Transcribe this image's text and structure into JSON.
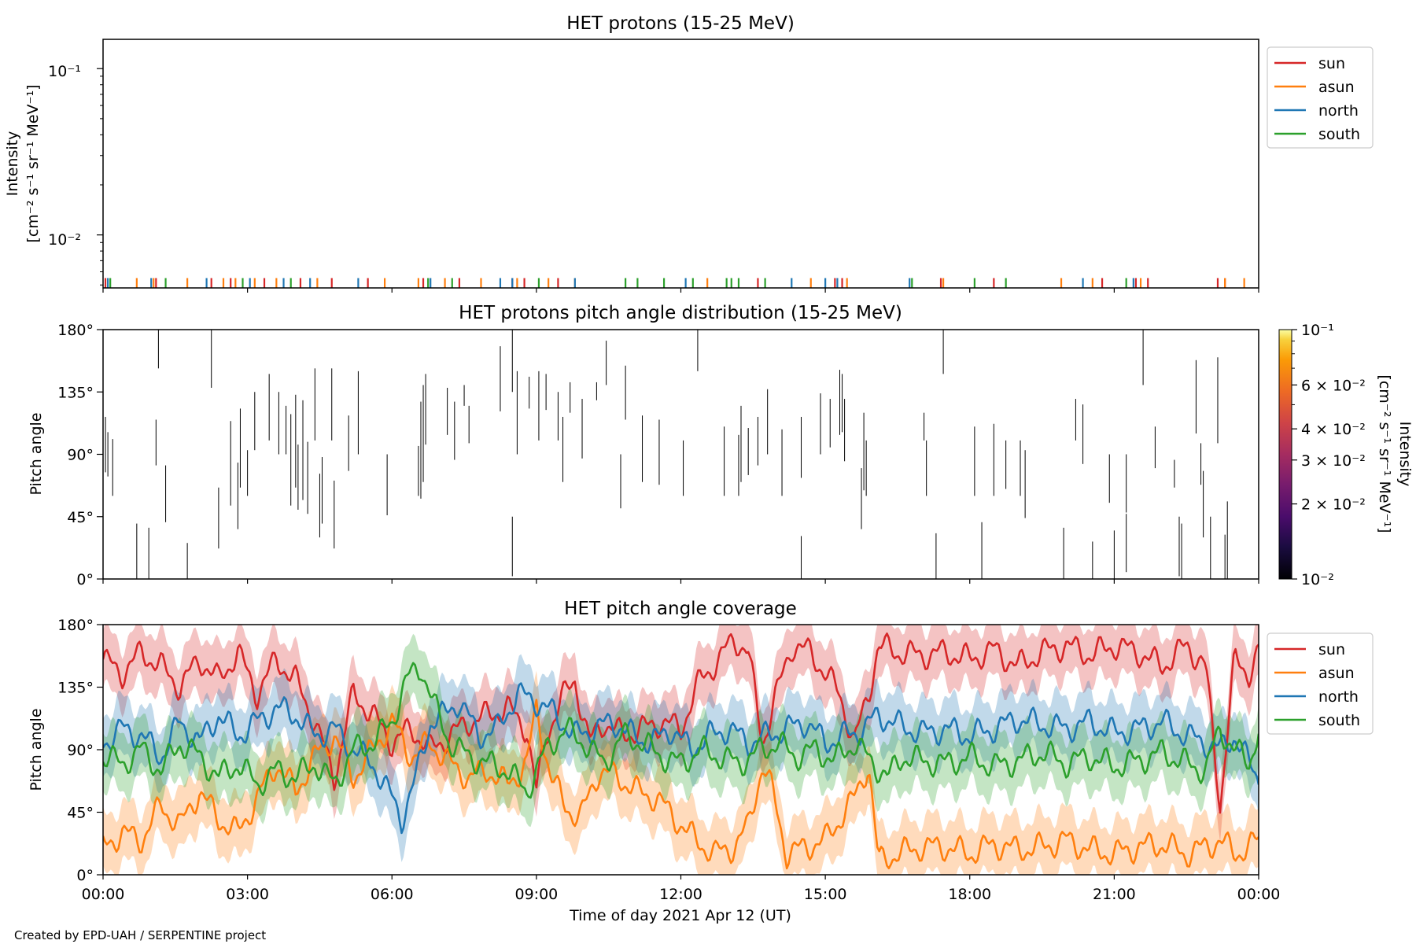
{
  "footer_text": "Created by EPD-UAH / SERPENTINE project",
  "xlabel": "Time of day 2021 Apr 12 (UT)",
  "x_ticks": [
    "00:00",
    "03:00",
    "06:00",
    "09:00",
    "12:00",
    "15:00",
    "18:00",
    "21:00",
    "00:00"
  ],
  "colors": {
    "sun": "#d62728",
    "asun": "#ff7f0e",
    "north": "#1f77b4",
    "south": "#2ca02c"
  },
  "legend": [
    "sun",
    "asun",
    "north",
    "south"
  ],
  "chart_data": [
    {
      "type": "line",
      "title": "HET protons (15-25 MeV)",
      "ylabel": [
        "Intensity",
        "[cm⁻² s⁻¹ sr⁻¹ MeV⁻¹]"
      ],
      "yscale": "log",
      "ylim": [
        0.0048,
        0.15
      ],
      "ytick_labels": [
        "10⁻¹",
        "10⁻²"
      ],
      "xlim_hours": [
        0,
        24
      ],
      "legend_placement": "upper right outside",
      "series": [
        {
          "name": "sun",
          "marks_value": 0.0055,
          "x_hours": [
            0.05,
            1.1,
            2.25,
            2.65,
            3.35,
            4.1,
            4.75,
            5.5,
            6.65,
            7.4,
            8.5,
            8.75,
            9.45,
            13.6,
            15.2,
            15.35,
            17.4,
            18.5,
            20.75,
            21.45,
            21.7,
            23.15,
            23.3
          ]
        },
        {
          "name": "asun",
          "marks_value": 0.0055,
          "x_hours": [
            0.7,
            1.05,
            1.75,
            2.5,
            2.75,
            3.15,
            3.6,
            4.45,
            5.85,
            6.55,
            7.1,
            7.85,
            8.6,
            9.25,
            9.8,
            12.55,
            14.7,
            15.45,
            17.45,
            19.9,
            20.55,
            21.55,
            23.3,
            23.7
          ]
        },
        {
          "name": "north",
          "marks_value": 0.0055,
          "x_hours": [
            0.1,
            1.0,
            2.15,
            3.05,
            3.75,
            4.3,
            5.3,
            6.8,
            8.25,
            8.5,
            9.8,
            12.1,
            14.3,
            15.0,
            15.25,
            16.75,
            20.35,
            21.4
          ]
        },
        {
          "name": "south",
          "marks_value": 0.0055,
          "x_hours": [
            0.15,
            1.3,
            2.9,
            3.9,
            6.75,
            7.25,
            9.05,
            10.85,
            11.1,
            11.65,
            12.25,
            12.95,
            13.05,
            13.2,
            13.75,
            16.8,
            18.1,
            18.75,
            21.25
          ]
        }
      ]
    },
    {
      "type": "heatmap",
      "title": "HET protons pitch angle distribution (15-25 MeV)",
      "ylabel": "Pitch angle",
      "ylim": [
        0,
        180
      ],
      "yticks": [
        0,
        45,
        90,
        135,
        180
      ],
      "ytick_labels": [
        "0°",
        "45°",
        "90°",
        "135°",
        "180°"
      ],
      "colorbar": {
        "label": [
          "Intensity",
          "[cm⁻² s⁻¹ sr⁻¹ MeV⁻¹]"
        ],
        "scale": "log",
        "range": [
          0.01,
          0.1
        ],
        "tick_values": [
          0.1,
          0.06,
          0.04,
          0.03,
          0.02,
          0.01
        ],
        "tick_labels": [
          "10⁻¹",
          "6 × 10⁻²",
          "4 × 10⁻²",
          "3 × 10⁻²",
          "2 × 10⁻²",
          "10⁻²"
        ]
      },
      "segments": [
        [
          0.05,
          77,
          117
        ],
        [
          0.1,
          74,
          106
        ],
        [
          0.2,
          60,
          101
        ],
        [
          0.7,
          0,
          40
        ],
        [
          0.95,
          0,
          37
        ],
        [
          1.1,
          82,
          115
        ],
        [
          1.15,
          152,
          180
        ],
        [
          1.3,
          41,
          82
        ],
        [
          1.75,
          0,
          26
        ],
        [
          2.25,
          138,
          180
        ],
        [
          2.4,
          22,
          66
        ],
        [
          2.65,
          53,
          114
        ],
        [
          2.8,
          36,
          84
        ],
        [
          2.85,
          66,
          123
        ],
        [
          3.0,
          60,
          93
        ],
        [
          3.15,
          93,
          135
        ],
        [
          3.45,
          100,
          148
        ],
        [
          3.65,
          90,
          135
        ],
        [
          3.8,
          90,
          125
        ],
        [
          3.9,
          53,
          119
        ],
        [
          4.0,
          66,
          133
        ],
        [
          4.05,
          50,
          97
        ],
        [
          4.15,
          57,
          129
        ],
        [
          4.25,
          47,
          99
        ],
        [
          4.4,
          100,
          152
        ],
        [
          4.5,
          30,
          76
        ],
        [
          4.55,
          40,
          88
        ],
        [
          4.75,
          100,
          152
        ],
        [
          4.8,
          22,
          71
        ],
        [
          5.1,
          78,
          118
        ],
        [
          5.3,
          90,
          150
        ],
        [
          5.9,
          46,
          90
        ],
        [
          6.55,
          60,
          96
        ],
        [
          6.6,
          58,
          128
        ],
        [
          6.65,
          70,
          140
        ],
        [
          6.7,
          97,
          148
        ],
        [
          7.15,
          104,
          138
        ],
        [
          7.3,
          86,
          128
        ],
        [
          7.5,
          125,
          140
        ],
        [
          7.6,
          98,
          125
        ],
        [
          8.25,
          121,
          168
        ],
        [
          8.5,
          2,
          45
        ],
        [
          8.5,
          135,
          180
        ],
        [
          8.6,
          90,
          150
        ],
        [
          8.85,
          123,
          146
        ],
        [
          9.05,
          100,
          150
        ],
        [
          9.2,
          122,
          148
        ],
        [
          9.45,
          100,
          135
        ],
        [
          9.55,
          70,
          117
        ],
        [
          9.7,
          120,
          142
        ],
        [
          9.95,
          87,
          130
        ],
        [
          10.25,
          129,
          142
        ],
        [
          10.45,
          140,
          172
        ],
        [
          10.75,
          51,
          90
        ],
        [
          10.85,
          115,
          154
        ],
        [
          11.2,
          70,
          118
        ],
        [
          11.55,
          68,
          115
        ],
        [
          12.05,
          60,
          100
        ],
        [
          12.35,
          150,
          180
        ],
        [
          12.9,
          60,
          110
        ],
        [
          13.2,
          60,
          104
        ],
        [
          13.25,
          70,
          125
        ],
        [
          13.4,
          75,
          109
        ],
        [
          13.6,
          82,
          117
        ],
        [
          13.8,
          90,
          137
        ],
        [
          14.1,
          60,
          108
        ],
        [
          14.5,
          0,
          31
        ],
        [
          14.5,
          73,
          117
        ],
        [
          14.9,
          90,
          134
        ],
        [
          15.1,
          95,
          130
        ],
        [
          15.3,
          104,
          151
        ],
        [
          15.35,
          106,
          148
        ],
        [
          15.4,
          85,
          130
        ],
        [
          15.75,
          36,
          80
        ],
        [
          15.8,
          64,
          120
        ],
        [
          15.85,
          60,
          100
        ],
        [
          17.05,
          100,
          120
        ],
        [
          17.1,
          60,
          100
        ],
        [
          17.3,
          0,
          33
        ],
        [
          17.45,
          148,
          180
        ],
        [
          18.1,
          60,
          110
        ],
        [
          18.25,
          0,
          41
        ],
        [
          18.5,
          60,
          112
        ],
        [
          18.75,
          65,
          100
        ],
        [
          19.05,
          60,
          100
        ],
        [
          19.15,
          44,
          93
        ],
        [
          19.95,
          0,
          37
        ],
        [
          20.2,
          100,
          130
        ],
        [
          20.35,
          83,
          126
        ],
        [
          20.55,
          0,
          27
        ],
        [
          20.9,
          55,
          90
        ],
        [
          21.0,
          0,
          35
        ],
        [
          21.25,
          48,
          90
        ],
        [
          21.25,
          5,
          47
        ],
        [
          21.6,
          140,
          180
        ],
        [
          21.85,
          80,
          110
        ],
        [
          22.25,
          66,
          86
        ],
        [
          22.35,
          2,
          45
        ],
        [
          22.4,
          0,
          40
        ],
        [
          22.7,
          105,
          158
        ],
        [
          22.8,
          68,
          98
        ],
        [
          22.85,
          30,
          78
        ],
        [
          23.0,
          0,
          45
        ],
        [
          23.15,
          98,
          160
        ],
        [
          23.3,
          0,
          32
        ],
        [
          23.35,
          0,
          56
        ]
      ]
    },
    {
      "type": "area",
      "title": "HET pitch angle coverage",
      "ylabel": "Pitch angle",
      "ylim": [
        0,
        180
      ],
      "yticks": [
        0,
        45,
        90,
        135,
        180
      ],
      "ytick_labels": [
        "0°",
        "45°",
        "90°",
        "135°",
        "180°"
      ],
      "legend_placement": "upper right outside",
      "band_halfwidth_deg": 21,
      "series_keyframes": [
        {
          "name": "sun",
          "t_hours": [
            0,
            0.4,
            0.8,
            1.2,
            1.6,
            2.0,
            2.4,
            2.8,
            3.2,
            3.6,
            4.0,
            4.4,
            4.8,
            5.2,
            5.6,
            6.0,
            6.4,
            6.8,
            7.2,
            7.6,
            8.0,
            8.4,
            8.8,
            9.0,
            9.2,
            9.5,
            9.8,
            10.1,
            10.4,
            10.8,
            11.2,
            11.6,
            12.0,
            12.4,
            12.8,
            13.1,
            13.4,
            13.7,
            13.9,
            14.3,
            14.7,
            15.1,
            15.3,
            15.6,
            15.9,
            16.1,
            16.5,
            17.0,
            17.5,
            18.0,
            18.5,
            19.0,
            19.5,
            20.0,
            20.5,
            21.0,
            21.5,
            22.0,
            22.5,
            22.9,
            23.2,
            23.5,
            23.8,
            24.0
          ],
          "y": [
            155,
            145,
            160,
            150,
            135,
            155,
            140,
            160,
            130,
            155,
            140,
            110,
            70,
            130,
            115,
            95,
            105,
            90,
            100,
            110,
            115,
            120,
            105,
            60,
            100,
            125,
            140,
            95,
            110,
            100,
            105,
            110,
            105,
            140,
            155,
            170,
            160,
            95,
            120,
            165,
            160,
            140,
            130,
            95,
            130,
            165,
            160,
            158,
            160,
            155,
            162,
            150,
            160,
            165,
            158,
            165,
            160,
            150,
            165,
            150,
            50,
            155,
            145,
            160
          ]
        },
        {
          "name": "asun",
          "t_hours": [
            0,
            0.4,
            0.8,
            1.2,
            1.6,
            2.0,
            2.4,
            2.8,
            3.2,
            3.6,
            4.0,
            4.4,
            4.8,
            5.2,
            5.6,
            6.0,
            6.4,
            6.8,
            7.2,
            7.6,
            8.0,
            8.4,
            8.8,
            9.0,
            9.3,
            9.6,
            9.9,
            10.3,
            10.7,
            11.1,
            11.5,
            11.9,
            12.3,
            12.7,
            13.1,
            13.4,
            13.7,
            13.9,
            14.2,
            14.6,
            15.0,
            15.3,
            15.6,
            15.9,
            16.1,
            16.5,
            17.0,
            17.5,
            18.0,
            18.5,
            19.0,
            19.5,
            20.0,
            20.5,
            21.0,
            21.5,
            22.0,
            22.5,
            22.9,
            23.2,
            23.5,
            23.8,
            24.0
          ],
          "y": [
            20,
            30,
            25,
            50,
            35,
            60,
            40,
            30,
            55,
            80,
            60,
            85,
            100,
            70,
            90,
            110,
            85,
            95,
            80,
            70,
            75,
            65,
            80,
            120,
            70,
            50,
            40,
            75,
            70,
            60,
            55,
            40,
            25,
            15,
            20,
            35,
            80,
            60,
            15,
            20,
            25,
            40,
            55,
            80,
            10,
            15,
            20,
            20,
            15,
            22,
            18,
            20,
            25,
            18,
            15,
            20,
            22,
            15,
            20,
            25,
            15,
            20,
            25
          ]
        },
        {
          "name": "north",
          "t_hours": [
            0,
            0.4,
            0.8,
            1.2,
            1.6,
            2.0,
            2.4,
            2.8,
            3.2,
            3.6,
            4.0,
            4.4,
            4.8,
            5.2,
            5.6,
            6.0,
            6.2,
            6.5,
            6.8,
            7.1,
            7.4,
            7.8,
            8.2,
            8.6,
            9.0,
            9.4,
            9.8,
            10.2,
            10.6,
            11.0,
            11.4,
            11.8,
            12.2,
            12.6,
            13.0,
            13.4,
            13.8,
            14.2,
            14.6,
            15.0,
            15.4,
            15.8,
            16.1,
            16.5,
            17.0,
            17.5,
            18.0,
            18.5,
            19.0,
            19.5,
            20.0,
            20.5,
            21.0,
            21.5,
            22.0,
            22.5,
            22.9,
            23.2,
            23.5,
            23.8,
            24.0
          ],
          "y": [
            95,
            105,
            100,
            85,
            110,
            95,
            115,
            100,
            110,
            120,
            115,
            100,
            105,
            90,
            80,
            55,
            40,
            70,
            110,
            115,
            125,
            100,
            105,
            130,
            125,
            115,
            100,
            105,
            110,
            100,
            95,
            105,
            90,
            100,
            105,
            95,
            100,
            105,
            110,
            95,
            100,
            105,
            115,
            108,
            102,
            105,
            100,
            105,
            112,
            108,
            105,
            110,
            102,
            105,
            110,
            100,
            95,
            90,
            100,
            80,
            70
          ]
        },
        {
          "name": "south",
          "t_hours": [
            0,
            0.4,
            0.8,
            1.2,
            1.6,
            2.0,
            2.4,
            2.8,
            3.2,
            3.6,
            4.0,
            4.4,
            4.8,
            5.2,
            5.6,
            6.0,
            6.3,
            6.6,
            6.9,
            7.2,
            7.6,
            8.0,
            8.4,
            8.8,
            9.2,
            9.6,
            10.0,
            10.4,
            10.8,
            11.2,
            11.6,
            12.0,
            12.4,
            12.8,
            13.2,
            13.6,
            14.0,
            14.4,
            14.8,
            15.2,
            15.6,
            16.0,
            16.3,
            16.6,
            17.0,
            17.5,
            18.0,
            18.5,
            19.0,
            19.5,
            20.0,
            20.5,
            21.0,
            21.5,
            22.0,
            22.5,
            22.9,
            23.2,
            23.5,
            23.8,
            24.0
          ],
          "y": [
            85,
            80,
            90,
            75,
            95,
            85,
            70,
            80,
            65,
            75,
            70,
            80,
            65,
            90,
            95,
            110,
            140,
            150,
            120,
            95,
            85,
            80,
            75,
            60,
            90,
            105,
            95,
            80,
            100,
            95,
            85,
            80,
            90,
            85,
            80,
            88,
            95,
            85,
            90,
            82,
            95,
            80,
            70,
            85,
            82,
            80,
            85,
            78,
            82,
            88,
            80,
            85,
            78,
            82,
            88,
            80,
            75,
            105,
            90,
            80,
            105
          ]
        }
      ]
    }
  ]
}
